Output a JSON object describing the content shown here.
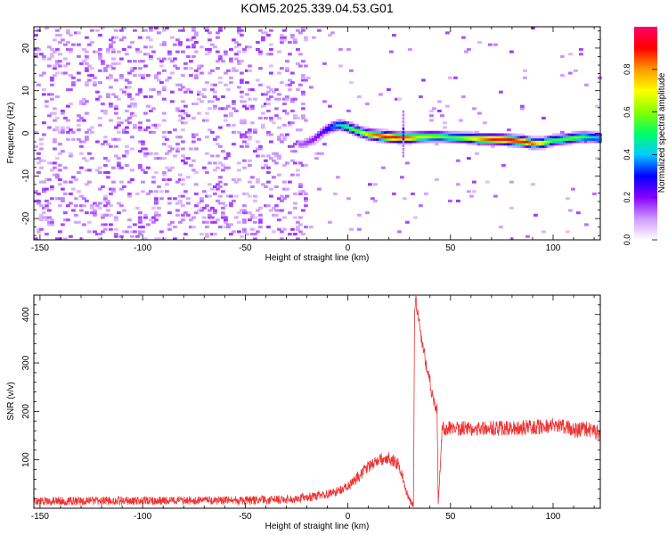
{
  "title": "KOM5.2025.339.04.53.G01",
  "chart_data": [
    {
      "type": "heatmap",
      "xlabel": "Height of straight line (km)",
      "ylabel": "Frequency (Hz)",
      "xlim": [
        -153,
        123
      ],
      "ylim": [
        -25,
        25
      ],
      "xticks": [
        -150,
        -100,
        -50,
        0,
        50,
        100
      ],
      "xtick_labels": [
        "-150",
        "-100",
        "-50",
        "0",
        "50",
        "100"
      ],
      "yticks": [
        -20,
        -10,
        0,
        10,
        20
      ],
      "ytick_labels": [
        "-20",
        "-10",
        "0",
        "10",
        "20"
      ],
      "grid": false,
      "colorbar": {
        "label": "Normalized spectral amplitude",
        "range": [
          0,
          1
        ],
        "ticks": [
          0.0,
          0.2,
          0.4,
          0.6,
          0.8
        ],
        "tick_labels": [
          "0.0",
          "0.2",
          "0.4",
          "0.6",
          "0.8"
        ],
        "colormap": [
          "#ffffff",
          "#cc99ff",
          "#8800ff",
          "#0000ff",
          "#00ccff",
          "#00ff66",
          "#88ff00",
          "#ffff00",
          "#ff9900",
          "#ff0000",
          "#ff0066"
        ]
      },
      "signal_ridge": {
        "x": [
          -22,
          -17,
          -12,
          -8,
          -4,
          0,
          5,
          10,
          15,
          20,
          25,
          30,
          35,
          40,
          45,
          50,
          55,
          60,
          65,
          70,
          75,
          80,
          85,
          90,
          95,
          100,
          105,
          110,
          115,
          120,
          123
        ],
        "frequency": [
          -2.5,
          -1.5,
          0.5,
          1.5,
          2.0,
          1.5,
          0.5,
          -0.2,
          -0.5,
          -0.8,
          -1.0,
          -1.0,
          -0.8,
          -0.7,
          -0.7,
          -0.9,
          -1.0,
          -1.1,
          -1.3,
          -1.3,
          -1.4,
          -1.6,
          -1.8,
          -2.3,
          -2.2,
          -1.6,
          -1.4,
          -1.0,
          -0.8,
          -0.9,
          -1.1
        ],
        "amplitude": [
          0.15,
          0.2,
          0.25,
          0.35,
          0.45,
          0.55,
          0.6,
          0.75,
          0.9,
          0.95,
          0.9,
          0.85,
          0.7,
          0.65,
          0.6,
          0.55,
          0.6,
          0.7,
          0.8,
          0.9,
          0.95,
          0.95,
          0.9,
          0.9,
          0.7,
          0.55,
          0.55,
          0.6,
          0.55,
          0.45,
          0.4
        ]
      },
      "noise_level": 0.1
    },
    {
      "type": "line",
      "xlabel": "Height of straight line (km)",
      "ylabel": "SNR (v/v)",
      "xlim": [
        -153,
        123
      ],
      "ylim": [
        0,
        440
      ],
      "xticks": [
        -150,
        -100,
        -50,
        0,
        50,
        100
      ],
      "xtick_labels": [
        "-150",
        "-100",
        "-50",
        "0",
        "50",
        "100"
      ],
      "yticks": [
        100,
        200,
        300,
        400
      ],
      "ytick_labels": [
        "100",
        "200",
        "300",
        "400"
      ],
      "grid": false,
      "series": [
        {
          "color": "#ee3333",
          "x": [
            -153,
            -120,
            -80,
            -50,
            -30,
            -15,
            -5,
            0,
            5,
            10,
            15,
            20,
            25,
            28,
            30,
            32,
            32.5,
            33,
            34,
            36,
            38,
            40,
            42,
            43.5,
            44,
            46,
            50,
            60,
            80,
            100,
            105,
            110,
            115,
            123
          ],
          "y": [
            15,
            15,
            16,
            16,
            18,
            25,
            35,
            45,
            65,
            85,
            100,
            105,
            90,
            40,
            15,
            5,
            420,
            430,
            400,
            350,
            300,
            260,
            220,
            200,
            10,
            165,
            165,
            165,
            165,
            170,
            170,
            160,
            165,
            155
          ],
          "noise_amplitude": 10
        }
      ]
    }
  ]
}
